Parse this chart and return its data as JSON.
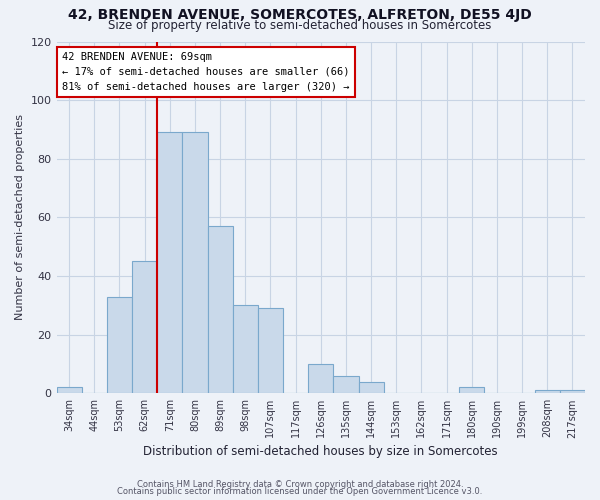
{
  "title": "42, BRENDEN AVENUE, SOMERCOTES, ALFRETON, DE55 4JD",
  "subtitle": "Size of property relative to semi-detached houses in Somercotes",
  "xlabel": "Distribution of semi-detached houses by size in Somercotes",
  "ylabel": "Number of semi-detached properties",
  "bar_color": "#c9d9ea",
  "bar_edge_color": "#7aa8cc",
  "categories": [
    "34sqm",
    "44sqm",
    "53sqm",
    "62sqm",
    "71sqm",
    "80sqm",
    "89sqm",
    "98sqm",
    "107sqm",
    "117sqm",
    "126sqm",
    "135sqm",
    "144sqm",
    "153sqm",
    "162sqm",
    "171sqm",
    "180sqm",
    "190sqm",
    "199sqm",
    "208sqm",
    "217sqm"
  ],
  "values": [
    2,
    0,
    33,
    45,
    89,
    89,
    57,
    30,
    29,
    0,
    10,
    6,
    4,
    0,
    0,
    0,
    2,
    0,
    0,
    1,
    1
  ],
  "ylim": [
    0,
    120
  ],
  "yticks": [
    0,
    20,
    40,
    60,
    80,
    100,
    120
  ],
  "marker_bin_index": 4,
  "ann_line1": "42 BRENDEN AVENUE: 69sqm",
  "ann_line2": "← 17% of semi-detached houses are smaller (66)",
  "ann_line3": "81% of semi-detached houses are larger (320) →",
  "annotation_box_color": "#ffffff",
  "annotation_box_edge": "#cc0000",
  "marker_line_color": "#cc0000",
  "footer1": "Contains HM Land Registry data © Crown copyright and database right 2024.",
  "footer2": "Contains public sector information licensed under the Open Government Licence v3.0.",
  "grid_color": "#c8d4e4",
  "background_color": "#eef2f8"
}
